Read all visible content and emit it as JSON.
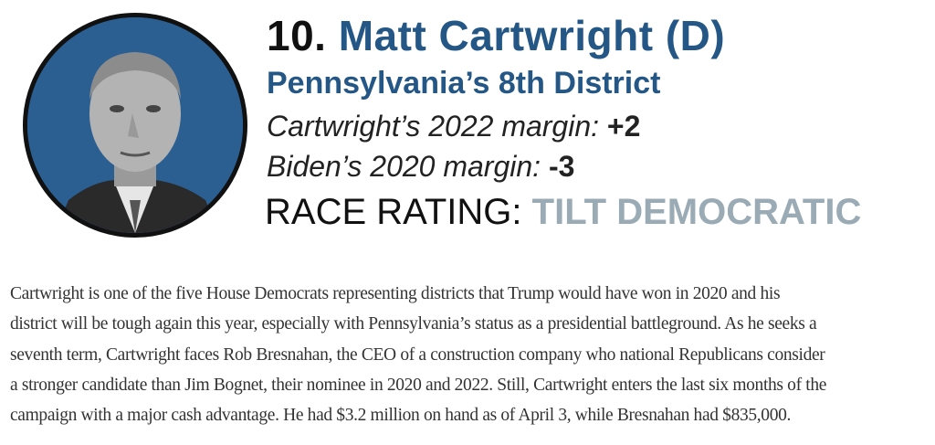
{
  "header": {
    "rank": "10.",
    "name": "Matt Cartwright (D)",
    "district": "Pennsylvania’s 8th District",
    "margin_2022_label": "Cartwright’s 2022 margin:",
    "margin_2022_value": "+2",
    "margin_2020_label": "Biden’s 2020 margin:",
    "margin_2020_value": "-3",
    "race_rating_label": "RACE RATING:",
    "race_rating_value": "TILT DEMOCRATIC"
  },
  "colors": {
    "name": "#245686",
    "rating": "#9aabb5",
    "photo_bg": "#2b5f92"
  },
  "body": {
    "lines": [
      "Cartwright is one of the five House Democrats representing districts that Trump would have won in 2020 and his",
      "district will be tough again this year, especially with Pennsylvania’s status as a presidential battleground. As he seeks a",
      "seventh term, Cartwright faces Rob Bresnahan, the CEO of a construction company who national Republicans consider",
      "a stronger candidate than Jim Bognet, their nominee in 2020 and 2022. Still, Cartwright enters the last six months of the",
      "campaign with a major cash advantage. He had $3.2 million on hand as of April 3, while Bresnahan had $835,000."
    ]
  }
}
